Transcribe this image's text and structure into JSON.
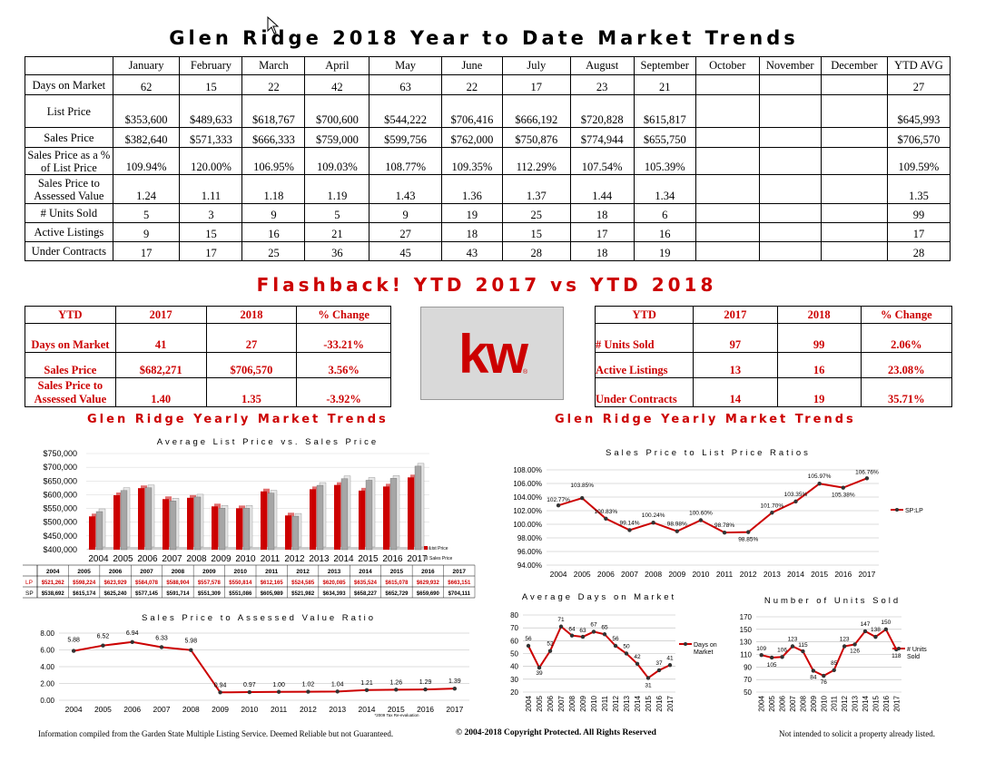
{
  "title": "Glen Ridge 2018 Year to Date Market Trends",
  "main_table": {
    "months": [
      "January",
      "February",
      "March",
      "April",
      "May",
      "June",
      "July",
      "August",
      "September",
      "October",
      "November",
      "December",
      "YTD AVG"
    ],
    "rows": [
      {
        "label": "Days on Market",
        "values": [
          "62",
          "15",
          "22",
          "42",
          "63",
          "22",
          "17",
          "23",
          "21",
          "",
          "",
          "",
          "27"
        ]
      },
      {
        "label": "List Price",
        "values": [
          "$353,600",
          "$489,633",
          "$618,767",
          "$700,600",
          "$544,222",
          "$706,416",
          "$666,192",
          "$720,828",
          "$615,817",
          "",
          "",
          "",
          "$645,993"
        ]
      },
      {
        "label": "Sales Price",
        "values": [
          "$382,640",
          "$571,333",
          "$666,333",
          "$759,000",
          "$599,756",
          "$762,000",
          "$750,876",
          "$774,944",
          "$655,750",
          "",
          "",
          "",
          "$706,570"
        ]
      },
      {
        "label": "Sales Price as a % of List Price",
        "values": [
          "109.94%",
          "120.00%",
          "106.95%",
          "109.03%",
          "108.77%",
          "109.35%",
          "112.29%",
          "107.54%",
          "105.39%",
          "",
          "",
          "",
          "109.59%"
        ]
      },
      {
        "label": "Sales Price to Assessed Value",
        "values": [
          "1.24",
          "1.11",
          "1.18",
          "1.19",
          "1.43",
          "1.36",
          "1.37",
          "1.44",
          "1.34",
          "",
          "",
          "",
          "1.35"
        ]
      },
      {
        "label": "# Units Sold",
        "values": [
          "5",
          "3",
          "9",
          "5",
          "9",
          "19",
          "25",
          "18",
          "6",
          "",
          "",
          "",
          "99"
        ]
      },
      {
        "label": "Active Listings",
        "values": [
          "9",
          "15",
          "16",
          "21",
          "27",
          "18",
          "15",
          "17",
          "16",
          "",
          "",
          "",
          "17"
        ]
      },
      {
        "label": "Under Contracts",
        "values": [
          "17",
          "17",
          "25",
          "36",
          "45",
          "43",
          "28",
          "18",
          "19",
          "",
          "",
          "",
          "28"
        ]
      }
    ]
  },
  "flashback_title": "Flashback!  YTD 2017 vs YTD 2018",
  "left_compare": {
    "headers": [
      "YTD",
      "2017",
      "2018",
      "% Change"
    ],
    "rows": [
      [
        "Days on Market",
        "41",
        "27",
        "-33.21%"
      ],
      [
        "Sales Price",
        "$682,271",
        "$706,570",
        "3.56%"
      ],
      [
        "Sales Price to Assessed Value",
        "1.40",
        "1.35",
        "-3.92%"
      ]
    ]
  },
  "right_compare": {
    "headers": [
      "YTD",
      "2017",
      "2018",
      "% Change"
    ],
    "rows": [
      [
        "# Units Sold",
        "97",
        "99",
        "2.06%"
      ],
      [
        "Active Listings",
        "13",
        "16",
        "23.08%"
      ],
      [
        "Under Contracts",
        "14",
        "19",
        "35.71%"
      ]
    ]
  },
  "logo_text": "kw",
  "section_left": "Glen Ridge Yearly Market Trends",
  "section_right": "Glen Ridge Yearly Market Trends",
  "colors": {
    "red": "#cc0000",
    "grey": "#a6a6a6"
  },
  "chart_data": [
    {
      "type": "bar",
      "title": "Average List Price vs. Sales Price",
      "categories": [
        "2004",
        "2005",
        "2006",
        "2007",
        "2008",
        "2009",
        "2010",
        "2011",
        "2012",
        "2013",
        "2014",
        "2015",
        "2016",
        "2017"
      ],
      "series": [
        {
          "name": "List Price",
          "label": "LP",
          "values": [
            521262,
            598224,
            623929,
            584078,
            588904,
            557578,
            550814,
            612165,
            524585,
            620085,
            635524,
            615078,
            629932,
            663151
          ],
          "labels": [
            "$521,262",
            "$598,224",
            "$623,929",
            "$584,078",
            "$588,904",
            "$557,578",
            "$550,814",
            "$612,165",
            "$524,585",
            "$620,085",
            "$635,524",
            "$615,078",
            "$629,932",
            "$663,151"
          ]
        },
        {
          "name": "Sales Price",
          "label": "SP",
          "values": [
            538692,
            615174,
            625240,
            577145,
            591714,
            551309,
            551086,
            605989,
            521982,
            634393,
            658227,
            652729,
            659690,
            704111
          ],
          "labels": [
            "$538,692",
            "$615,174",
            "$625,240",
            "$577,145",
            "$591,714",
            "$551,309",
            "$551,086",
            "$605,989",
            "$521,982",
            "$634,393",
            "$658,227",
            "$652,729",
            "$659,690",
            "$704,111"
          ]
        }
      ],
      "yticks": [
        "$400,000",
        "$450,000",
        "$500,000",
        "$550,000",
        "$600,000",
        "$650,000",
        "$700,000",
        "$750,000"
      ],
      "ylim": [
        400000,
        750000
      ]
    },
    {
      "type": "line",
      "title": "Sales Price to List Price Ratios",
      "x": [
        "2004",
        "2005",
        "2006",
        "2007",
        "2008",
        "2009",
        "2010",
        "2011",
        "2012",
        "2013",
        "2014",
        "2015",
        "2016",
        "2017"
      ],
      "series": [
        {
          "name": "SP:LP",
          "values": [
            102.77,
            103.85,
            100.83,
            99.14,
            100.24,
            98.98,
            100.6,
            98.78,
            98.85,
            101.7,
            103.35,
            105.97,
            105.38,
            106.76
          ],
          "labels": [
            "102.77%",
            "103.85%",
            "100.83%",
            "99.14%",
            "100.24%",
            "98.98%",
            "100.60%",
            "98.78%",
            "98.85%",
            "101.70%",
            "103.35%",
            "105.97%",
            "105.38%",
            "106.76%"
          ]
        }
      ],
      "yticks": [
        "94.00%",
        "96.00%",
        "98.00%",
        "100.00%",
        "102.00%",
        "104.00%",
        "106.00%",
        "108.00%"
      ],
      "ylim": [
        94,
        108
      ]
    },
    {
      "type": "line",
      "title": "Sales Price to Assessed Value Ratio",
      "x": [
        "2004",
        "2005",
        "2006",
        "2007",
        "2008",
        "2009",
        "2010",
        "2011",
        "2012",
        "2013",
        "2014",
        "2015",
        "2016",
        "2017"
      ],
      "series": [
        {
          "values": [
            5.88,
            6.52,
            6.94,
            6.33,
            5.98,
            0.94,
            0.97,
            1.0,
            1.02,
            1.04,
            1.21,
            1.26,
            1.29,
            1.39
          ],
          "labels": [
            "5.88",
            "6.52",
            "6.94",
            "6.33",
            "5.98",
            "0.94",
            "0.97",
            "1.00",
            "1.02",
            "1.04",
            "1.21",
            "1.26",
            "1.29",
            "1.39"
          ]
        }
      ],
      "yticks": [
        "0.00",
        "2.00",
        "4.00",
        "6.00",
        "8.00"
      ],
      "ylim": [
        0,
        8
      ],
      "note": "*2009 Tax Re-evaluation"
    },
    {
      "type": "line",
      "title": "Average Days on Market",
      "x": [
        "2004",
        "2005",
        "2006",
        "2007",
        "2008",
        "2009",
        "2010",
        "2011",
        "2012",
        "2013",
        "2014",
        "2015",
        "2016",
        "2017"
      ],
      "series": [
        {
          "name": "Days on Market",
          "values": [
            56,
            39,
            52,
            71,
            64,
            63,
            67,
            65,
            56,
            50,
            42,
            31,
            37,
            41
          ],
          "labels": [
            "56",
            "39",
            "52",
            "71",
            "64",
            "63",
            "67",
            "65",
            "56",
            "50",
            "42",
            "31",
            "37",
            "41"
          ]
        }
      ],
      "yticks": [
        "20",
        "30",
        "40",
        "50",
        "60",
        "70",
        "80"
      ],
      "ylim": [
        20,
        80
      ]
    },
    {
      "type": "line",
      "title": "Number of Units Sold",
      "x": [
        "2004",
        "2005",
        "2006",
        "2007",
        "2008",
        "2009",
        "2010",
        "2011",
        "2012",
        "2013",
        "2014",
        "2015",
        "2016",
        "2017"
      ],
      "series": [
        {
          "name": "# Units Sold",
          "values": [
            109,
            105,
            106,
            123,
            115,
            84,
            76,
            85,
            123,
            126,
            147,
            138,
            150,
            118
          ],
          "labels": [
            "109",
            "105",
            "106",
            "123",
            "115",
            "84",
            "76",
            "85",
            "123",
            "126",
            "147",
            "138",
            "150",
            "118"
          ]
        }
      ],
      "yticks": [
        "50",
        "70",
        "90",
        "110",
        "130",
        "150",
        "170"
      ],
      "ylim": [
        50,
        170
      ]
    }
  ],
  "footer": {
    "left": "Information compiled from the Garden State Multiple Listing Service.  Deemed Reliable but not Guaranteed.",
    "center": "© 2004-2018 Copyright Protected.  All Rights Reserved",
    "right": "Not intended to solicit a property already listed."
  }
}
